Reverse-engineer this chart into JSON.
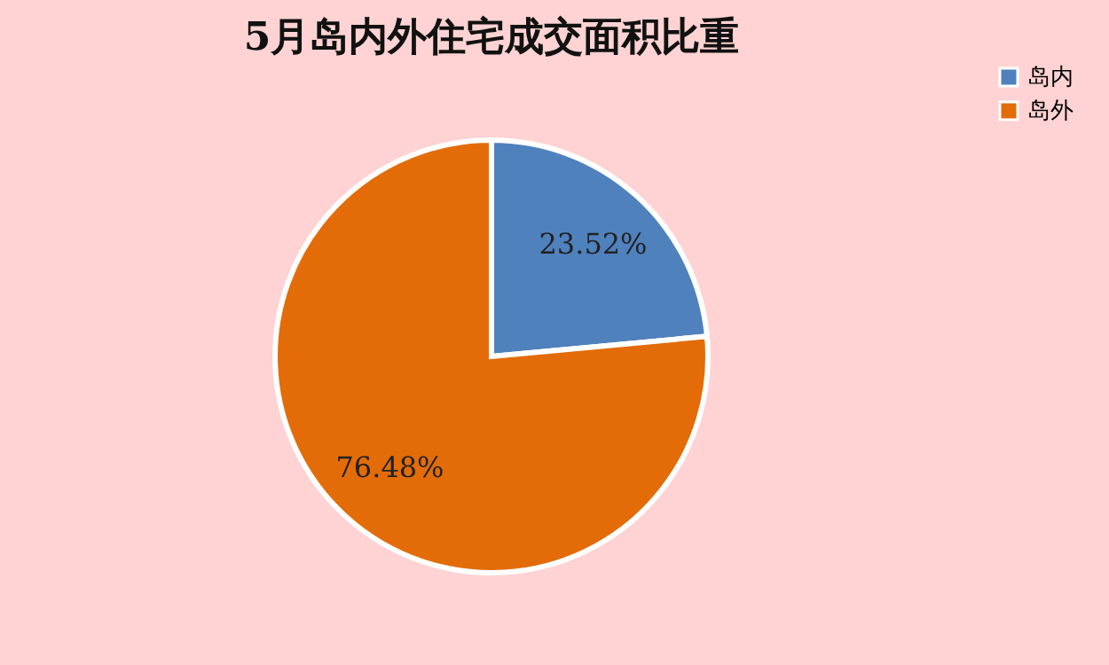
{
  "chart_data": {
    "type": "pie",
    "title": "5月岛内外住宅成交面积比重",
    "categories": [
      "岛内",
      "岛外"
    ],
    "values": [
      23.52,
      76.48
    ],
    "colors": [
      "#4f81bd",
      "#e36c09"
    ],
    "value_labels": [
      "23.52%",
      "76.48%"
    ],
    "legend": "right"
  }
}
